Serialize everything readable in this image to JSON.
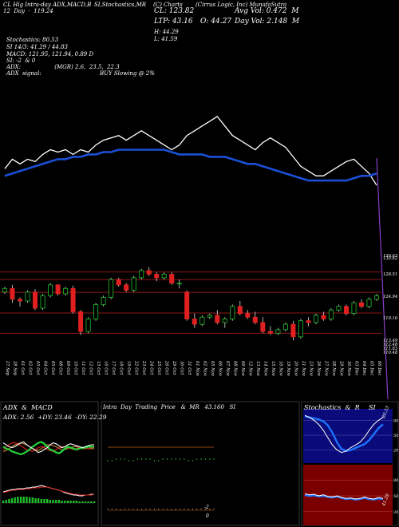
{
  "header": {
    "left_top": "CL Hig Intra-day ADX,MACD,B",
    "mid_top": "SI,Stochastics,MR",
    "symbol_top": "(C) Charts",
    "company_top": "(Cirrus Logic, Inc) MunafaSutra",
    "row2_left": "12  Day  ·  119.24",
    "cl_row": "CL: 123.82",
    "avg_vol_row": "Avg Vol: 0.472  M",
    "ltp_row": "LTP: 43.16",
    "open_row": "O: 44.27",
    "day_vol_row": "Day Vol: 2.148  M",
    "high_row": "H: 44.29",
    "low_row": "L: 41.59",
    "stoch_row": "Stochastics: 80.53",
    "si_row": "SI 14/3: 41.29 / 44.83",
    "macd_row": "MACD: 121.95, 121.94, 0.89 D",
    "mr_row": "SI: -2  & 0",
    "adx_row": "ADX:                   (MGR) 2.6,  23.5,  22.3",
    "adx_signal": "ADX  signal:",
    "buy_row": "BUY Slowing @ 2%"
  },
  "chart_data": {
    "type": "candlestick",
    "y_ticks": [
      "130.63",
      "130.62",
      "128.51",
      "124.94",
      "119.16",
      "113.49",
      "112.48",
      "111.83",
      "110.48"
    ],
    "x_labels": [
      "27 Sep",
      "28 Sep",
      "01 Oct",
      "02 Oct",
      "03 Oct",
      "04 Oct",
      "05 Oct",
      "08 Oct",
      "09 Oct",
      "10 Oct",
      "11 Oct",
      "12 Oct",
      "15 Oct",
      "16 Oct",
      "17 Oct",
      "18 Oct",
      "19 Oct",
      "22 Oct",
      "23 Oct",
      "24 Oct",
      "25 Oct",
      "26 Oct",
      "29 Oct",
      "30 Oct",
      "31 Oct",
      "01 Nov",
      "02 Nov",
      "05 Nov",
      "06 Nov",
      "07 Nov",
      "08 Nov",
      "09 Nov",
      "12 Nov",
      "13 Nov",
      "14 Nov",
      "15 Nov",
      "16 Nov",
      "19 Nov",
      "20 Nov",
      "21 Nov",
      "23 Nov",
      "26 Nov",
      "27 Nov",
      "28 Nov",
      "29 Nov",
      "30 Nov",
      "03 Dec",
      "04 Dec",
      "05 Dec",
      "06 Dec"
    ],
    "candles": [
      [
        125.0,
        126.5,
        124.5,
        126.0
      ],
      [
        126.0,
        127.0,
        122.0,
        123.0
      ],
      [
        123.0,
        123.5,
        121.0,
        122.5
      ],
      [
        122.5,
        125.5,
        122.0,
        125.0
      ],
      [
        125.0,
        125.8,
        120.0,
        120.5
      ],
      [
        120.5,
        124.5,
        120.0,
        124.0
      ],
      [
        124.0,
        127.5,
        123.5,
        127.0
      ],
      [
        127.0,
        127.2,
        124.0,
        124.5
      ],
      [
        124.5,
        126.5,
        124.0,
        126.0
      ],
      [
        126.0,
        126.8,
        119.0,
        119.5
      ],
      [
        119.5,
        120.0,
        113.0,
        114.0
      ],
      [
        114.0,
        118.0,
        113.5,
        117.5
      ],
      [
        117.5,
        122.0,
        117.0,
        121.5
      ],
      [
        121.5,
        124.0,
        121.0,
        123.5
      ],
      [
        123.5,
        129.0,
        123.0,
        128.5
      ],
      [
        128.5,
        129.0,
        126.5,
        127.0
      ],
      [
        127.0,
        127.5,
        125.0,
        125.5
      ],
      [
        125.5,
        129.5,
        125.0,
        129.0
      ],
      [
        129.0,
        131.5,
        128.5,
        131.0
      ],
      [
        131.0,
        132.0,
        129.5,
        130.0
      ],
      [
        130.0,
        130.5,
        128.0,
        129.0
      ],
      [
        129.0,
        130.5,
        128.5,
        130.0
      ],
      [
        130.0,
        130.5,
        127.0,
        127.5
      ],
      [
        127.5,
        128.5,
        126.0,
        127.5
      ],
      [
        125.0,
        125.5,
        117.0,
        117.5
      ],
      [
        117.5,
        119.0,
        115.0,
        116.0
      ],
      [
        116.0,
        118.5,
        115.5,
        118.0
      ],
      [
        118.0,
        119.0,
        117.5,
        118.5
      ],
      [
        118.5,
        120.0,
        116.0,
        116.5
      ],
      [
        116.5,
        118.0,
        115.0,
        117.5
      ],
      [
        117.5,
        121.5,
        117.0,
        121.0
      ],
      [
        121.0,
        122.5,
        118.5,
        119.0
      ],
      [
        119.0,
        120.0,
        117.5,
        118.0
      ],
      [
        118.0,
        119.5,
        116.0,
        116.5
      ],
      [
        116.5,
        118.0,
        113.5,
        114.0
      ],
      [
        114.0,
        115.5,
        113.0,
        113.5
      ],
      [
        113.5,
        115.0,
        113.0,
        114.5
      ],
      [
        114.5,
        116.5,
        114.0,
        116.0
      ],
      [
        116.0,
        117.0,
        111.5,
        112.5
      ],
      [
        112.5,
        117.5,
        112.0,
        117.0
      ],
      [
        117.0,
        118.0,
        115.5,
        116.5
      ],
      [
        116.5,
        119.0,
        116.0,
        118.5
      ],
      [
        118.5,
        119.5,
        117.0,
        117.5
      ],
      [
        117.5,
        120.5,
        117.0,
        120.0
      ],
      [
        120.0,
        121.5,
        119.5,
        121.0
      ],
      [
        121.0,
        121.5,
        118.5,
        119.0
      ],
      [
        119.0,
        122.5,
        118.5,
        122.0
      ],
      [
        122.0,
        123.0,
        120.5,
        121.0
      ],
      [
        121.0,
        123.5,
        120.5,
        123.0
      ],
      [
        123.0,
        124.5,
        122.5,
        124.0
      ]
    ],
    "price_range": [
      108,
      137
    ],
    "reference_levels": [
      130.62,
      128.51,
      124.94,
      119.16,
      113.49
    ],
    "volume_line": [
      58,
      62,
      60,
      62,
      61,
      64,
      66,
      65,
      66,
      64,
      66,
      65,
      68,
      70,
      71,
      72,
      70,
      72,
      74,
      72,
      70,
      68,
      66,
      68,
      72,
      74,
      76,
      78,
      80,
      76,
      72,
      70,
      68,
      66,
      69,
      71,
      69,
      67,
      63,
      59,
      57,
      55,
      55,
      57,
      59,
      61,
      62,
      59,
      56,
      51
    ],
    "volume_avg": [
      55,
      56,
      57,
      58,
      59,
      60,
      61,
      62,
      62,
      63,
      63,
      64,
      64,
      65,
      65,
      66,
      66,
      66,
      66,
      66,
      66,
      66,
      65,
      64,
      64,
      64,
      64,
      63,
      63,
      63,
      62,
      61,
      60,
      60,
      59,
      58,
      57,
      56,
      55,
      54,
      53,
      53,
      53,
      53,
      53,
      53,
      54,
      55,
      55,
      56
    ]
  },
  "panels": {
    "adx_macd": {
      "title": "ADX  &  MACD",
      "adx_readout": "ADX: 2.56  +DY: 23.46  -DY: 22.29",
      "adx_lines": {
        "white": [
          62,
          60,
          58,
          57,
          58,
          60,
          62,
          63,
          60,
          58,
          56,
          54,
          52,
          53,
          55,
          57,
          60,
          62,
          61,
          59,
          57,
          58,
          60,
          61,
          60,
          59,
          58,
          57,
          58,
          59,
          60,
          60
        ],
        "green": [
          58,
          56,
          55,
          53,
          52,
          51,
          50,
          51,
          53,
          55,
          58,
          60,
          62,
          63,
          61,
          58,
          55,
          54,
          52,
          51,
          53,
          56,
          58,
          57,
          56,
          55,
          56,
          57,
          57,
          58,
          58,
          58
        ],
        "red": [
          55,
          58,
          60,
          62,
          62,
          61,
          59,
          57,
          55,
          54,
          53,
          55,
          57,
          58,
          57,
          55,
          54,
          53,
          55,
          57,
          58,
          58,
          57,
          56,
          55,
          56,
          57,
          57,
          56,
          56,
          57,
          57
        ],
        "orange": [
          53,
          54,
          56,
          58,
          60,
          61,
          62,
          61,
          60,
          58,
          56,
          55,
          54,
          56,
          58,
          60,
          60,
          59,
          58,
          56,
          55,
          55,
          56,
          57,
          58,
          58,
          57,
          56,
          56,
          56,
          56,
          56
        ]
      },
      "macd_hist": [
        3,
        4,
        5,
        6,
        7,
        8,
        8,
        8,
        8,
        7,
        7,
        6,
        6,
        5,
        5,
        5,
        4,
        4,
        4,
        4,
        3,
        3,
        3,
        3,
        3,
        3,
        2,
        2,
        2,
        2,
        2,
        2
      ],
      "macd_white": [
        14,
        15,
        16,
        17,
        17,
        18,
        18,
        18,
        19,
        19,
        20,
        20,
        21,
        22,
        21,
        20,
        19,
        18,
        17,
        16,
        15,
        13,
        12,
        11,
        10,
        10,
        9,
        9,
        10,
        10,
        11,
        11
      ],
      "macd_red": [
        13,
        14,
        15,
        16,
        16,
        17,
        17,
        17,
        18,
        18,
        19,
        19,
        19,
        20,
        20,
        20,
        19,
        18,
        17,
        16,
        15,
        14,
        13,
        12,
        11,
        11,
        10,
        10,
        10,
        10,
        10,
        11
      ]
    },
    "intraday": {
      "title": "Intra  Day  Trading  Price   &  MR   43.160   SI",
      "mr_zero": "0",
      "mr_min": "-2",
      "price_dots": [
        43.1,
        43.1,
        43.2,
        43.2,
        43.2,
        43.1,
        43.1,
        43.2,
        43.2,
        43.2,
        43.2,
        43.1,
        43.1,
        43.2,
        43.2,
        43.2,
        43.2,
        43.2,
        43.2,
        43.1,
        43.1,
        43.2,
        43.2,
        43.2,
        43.2,
        43.2
      ],
      "mr_dots": [
        0.1,
        0.2,
        0.1,
        0.0,
        0.2,
        0.1,
        0.2,
        0.1,
        0.0,
        0.1,
        0.2,
        0.1,
        0.1,
        0.2,
        0.1,
        0.0,
        0.1,
        0.1,
        0.2,
        0.1,
        0.1,
        0.1,
        0.2,
        0.1,
        0.0,
        0.1
      ]
    },
    "stoch_rsi": {
      "title": "Stochastics  &  R",
      "title_right": "SI",
      "stoch_ticks": [
        "80",
        "50",
        "20"
      ],
      "rsi_ticks": [
        "80",
        "50",
        "20"
      ],
      "stoch_value": "80.53",
      "rsi_value": "41.29",
      "stoch_blue": [
        88,
        86,
        84,
        82,
        78,
        70,
        55,
        35,
        22,
        18,
        20,
        24,
        28,
        32,
        40,
        52,
        64,
        72
      ],
      "stoch_white": [
        90,
        86,
        80,
        72,
        60,
        45,
        30,
        20,
        15,
        18,
        25,
        30,
        36,
        46,
        60,
        72,
        80,
        86
      ],
      "rsi_blue": [
        52,
        50,
        51,
        49,
        50,
        48,
        47,
        49,
        46,
        44,
        45,
        43,
        44,
        46,
        44,
        43,
        45,
        44
      ],
      "rsi_white": [
        54,
        52,
        53,
        50,
        52,
        49,
        48,
        50,
        47,
        45,
        46,
        44,
        45,
        48,
        45,
        44,
        47,
        45
      ]
    }
  }
}
